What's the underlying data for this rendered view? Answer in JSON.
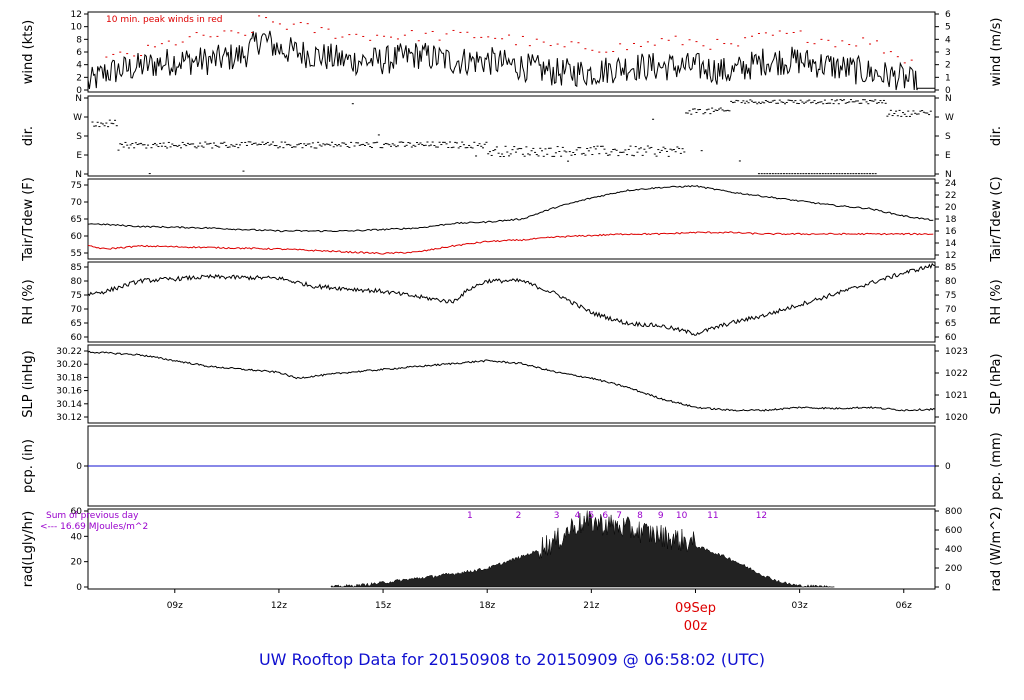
{
  "title": "UW Rooftop Data for 20150908  to  20150909 @ 06:58:02  (UTC)",
  "colors": {
    "red": "#dd0000",
    "blue": "#1010d0",
    "purple": "#9900cc",
    "line": "#000000"
  },
  "x_axis": {
    "ticks": [
      "09z",
      "12z",
      "15z",
      "18z",
      "21z",
      "09Sep",
      "03z",
      "06z"
    ],
    "date_label": "09Sep",
    "date_sub": "00z"
  },
  "chart_data": [
    {
      "type": "line",
      "panel": "wind",
      "left_label": "wind (kts)",
      "right_label": "wind (m/s)",
      "left_ticks": [
        "0",
        "2",
        "4",
        "6",
        "8",
        "10",
        "12"
      ],
      "right_ticks": [
        "0",
        "1",
        "2",
        "3",
        "4",
        "5",
        "6"
      ],
      "annotation": "10 min. peak winds in red",
      "ylim": [
        0,
        13
      ],
      "series": [
        {
          "name": "wind speed",
          "x": [
            6.5,
            7,
            8,
            9,
            10,
            11,
            11.5,
            12,
            13,
            14,
            15,
            16,
            17,
            18,
            19,
            20,
            21,
            22,
            23,
            24,
            25,
            26,
            27,
            28,
            29,
            30,
            30.5,
            30.9
          ],
          "y": [
            1,
            3,
            4,
            5,
            5,
            6,
            9,
            7,
            6,
            5,
            5,
            6,
            5,
            5,
            4,
            3,
            3,
            4,
            4,
            4,
            3,
            5,
            5,
            4,
            3,
            2,
            0.5,
            0.5
          ]
        },
        {
          "name": "10 min peak",
          "x": [
            7,
            8,
            9,
            10,
            11,
            11.5,
            12,
            13,
            14,
            15,
            16,
            17,
            18,
            19,
            20,
            21,
            22,
            23,
            24,
            25,
            26,
            27,
            28,
            29,
            30
          ],
          "y": [
            5,
            6,
            8,
            9,
            9,
            12,
            11,
            10,
            9,
            9,
            9,
            9,
            9,
            8,
            7,
            7,
            7,
            8,
            8,
            7,
            9,
            9,
            8,
            8,
            5
          ]
        }
      ]
    },
    {
      "type": "scatter",
      "panel": "dir",
      "left_label": "dir.",
      "right_label": "dir.",
      "left_ticks": [
        "N",
        "E",
        "S",
        "W",
        "N"
      ],
      "right_ticks": [
        "N",
        "E",
        "S",
        "W",
        "N"
      ]
    },
    {
      "type": "line",
      "panel": "temp",
      "left_label": "Tair/Tdew (F)",
      "right_label": "Tair/Tdew (C)",
      "left_ticks": [
        "55",
        "60",
        "65",
        "70",
        "75"
      ],
      "right_ticks": [
        "12",
        "14",
        "16",
        "18",
        "20",
        "22",
        "24"
      ],
      "ylim": [
        51,
        75
      ],
      "series": [
        {
          "name": "Tair",
          "x": [
            6.5,
            8,
            10,
            12,
            14,
            16,
            17,
            18,
            19,
            20,
            21,
            22,
            23,
            24,
            25,
            26,
            27,
            28,
            29,
            30,
            30.9
          ],
          "y": [
            61.5,
            60.5,
            60,
            59,
            59,
            60,
            61.5,
            62,
            63,
            67,
            70,
            72.5,
            73.5,
            74,
            72,
            70.5,
            69,
            67.5,
            66.5,
            64,
            62.5
          ]
        },
        {
          "name": "Tdew",
          "x": [
            6.5,
            7,
            8,
            10,
            12,
            14,
            15,
            16,
            17,
            18,
            19,
            20,
            21,
            22,
            23,
            24,
            25,
            26,
            28,
            30,
            30.9
          ],
          "y": [
            54,
            53,
            54,
            53.5,
            53,
            52,
            51.5,
            52,
            54,
            55.5,
            56,
            57,
            57.5,
            58,
            58,
            58.5,
            58.5,
            58,
            58,
            58,
            58
          ]
        }
      ]
    },
    {
      "type": "line",
      "panel": "rh",
      "left_label": "RH (%)",
      "right_label": "RH (%)",
      "left_ticks": [
        "60",
        "65",
        "70",
        "75",
        "80",
        "85"
      ],
      "right_ticks": [
        "60",
        "65",
        "70",
        "75",
        "80",
        "85"
      ],
      "ylim": [
        58,
        86
      ],
      "series": [
        {
          "name": "RH",
          "x": [
            6.5,
            7,
            8,
            10,
            12,
            13,
            14,
            15,
            16,
            17,
            17.5,
            18,
            19,
            20,
            21,
            22,
            23,
            24,
            25,
            26,
            27,
            28,
            29,
            30,
            30.9
          ],
          "y": [
            75,
            76,
            80,
            81.5,
            81,
            78,
            77,
            76,
            74,
            72,
            77,
            80,
            80,
            75,
            68,
            64,
            63,
            60,
            64,
            67,
            71,
            75,
            79,
            83,
            86
          ]
        }
      ]
    },
    {
      "type": "line",
      "panel": "slp",
      "left_label": "SLP (inHg)",
      "right_label": "SLP (hPa)",
      "left_ticks": [
        "30.12",
        "30.14",
        "30.16",
        "30.18",
        "30.20",
        "30.22"
      ],
      "right_ticks": [
        "1020",
        "1021",
        "1022",
        "1023"
      ],
      "ylim": [
        30.11,
        30.23
      ],
      "series": [
        {
          "name": "SLP",
          "x": [
            6.5,
            8,
            10,
            12,
            12.5,
            14,
            16,
            17,
            18,
            19,
            20,
            21,
            22,
            23,
            24,
            25,
            26,
            27,
            28,
            29,
            30,
            30.9
          ],
          "y": [
            30.225,
            30.22,
            30.2,
            30.19,
            30.18,
            30.19,
            30.2,
            30.205,
            30.21,
            30.205,
            30.19,
            30.18,
            30.165,
            30.145,
            30.13,
            30.125,
            30.125,
            30.13,
            30.128,
            30.13,
            30.125,
            30.127
          ]
        }
      ]
    },
    {
      "type": "line",
      "panel": "pcp",
      "left_label": "pcp. (in)",
      "right_label": "pcp. (mm)",
      "left_ticks": [
        "0"
      ],
      "right_ticks": [
        "0"
      ],
      "series": [
        {
          "name": "pcp",
          "x": [
            6.5,
            30.9
          ],
          "y": [
            0,
            0
          ]
        }
      ]
    },
    {
      "type": "area",
      "panel": "rad",
      "left_label": "rad(Lgly/hr)",
      "right_label": "rad (W/m^2)",
      "left_ticks": [
        "0",
        "20",
        "40",
        "60"
      ],
      "right_ticks": [
        "0",
        "200",
        "400",
        "600",
        "800"
      ],
      "note1": "Sum of previous day",
      "note2": "<--- 16.69 MJoules/m^2",
      "hour_marks": [
        "1",
        "2",
        "3",
        "4",
        "5",
        "6",
        "7",
        "8",
        "9",
        "10",
        "11",
        "12"
      ],
      "ylim": [
        0,
        70
      ],
      "series": [
        {
          "name": "rad",
          "x": [
            13.5,
            14.5,
            15,
            16,
            17,
            18,
            19,
            20,
            20.5,
            21,
            22,
            23,
            24,
            25,
            26,
            26.5,
            27,
            28
          ],
          "y": [
            0,
            2,
            4,
            8,
            12,
            17,
            28,
            40,
            55,
            58,
            52,
            45,
            38,
            26,
            10,
            4,
            1,
            0
          ]
        }
      ]
    }
  ]
}
